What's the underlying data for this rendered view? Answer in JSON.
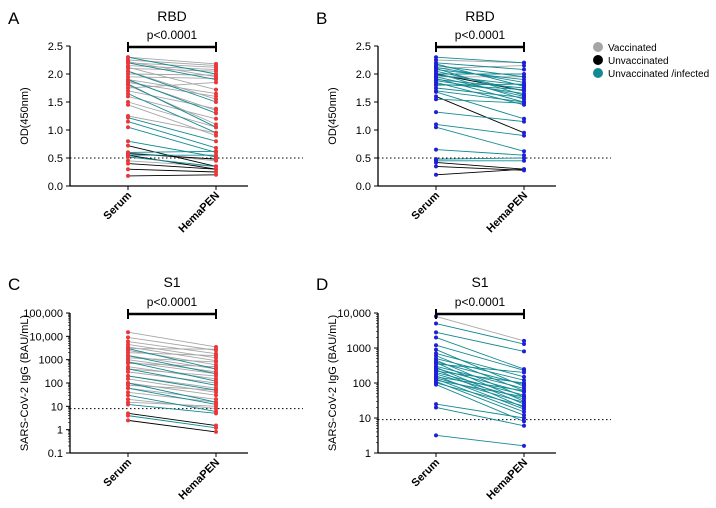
{
  "legend": [
    {
      "label": "Vaccinated",
      "color": "#a6a6a6"
    },
    {
      "label": "Unvaccinated",
      "color": "#000000"
    },
    {
      "label": "Unvaccinated /infected",
      "color": "#138a93"
    }
  ],
  "chart_data": [
    {
      "panel": "A",
      "type": "line",
      "title": "RBD",
      "ylabel": "OD(450nm)",
      "scale": "linear",
      "categories": [
        "Serum",
        "HemaPEN"
      ],
      "point_color": "#e8383b",
      "pvalue": "p<0.0001",
      "ylim": [
        0,
        2.5
      ],
      "yticks": [
        0,
        0.5,
        1.0,
        1.5,
        2.0,
        2.5
      ],
      "ytick_labels": [
        "0.0",
        "0.5",
        "1.0",
        "1.5",
        "2.0",
        "2.5"
      ],
      "threshold": 0.5,
      "groups": [
        {
          "name": "Vaccinated",
          "pairs": [
            [
              2.3,
              2.18
            ],
            [
              2.25,
              2.15
            ],
            [
              2.22,
              1.95
            ],
            [
              2.2,
              2.12
            ],
            [
              2.15,
              2.08
            ],
            [
              2.12,
              1.72
            ],
            [
              2.1,
              2.05
            ],
            [
              2.05,
              1.55
            ],
            [
              2.0,
              1.98
            ],
            [
              1.95,
              1.92
            ],
            [
              1.9,
              1.65
            ],
            [
              1.88,
              1.35
            ],
            [
              1.85,
              1.6
            ],
            [
              1.8,
              1.1
            ],
            [
              1.75,
              1.85
            ],
            [
              1.7,
              1.38
            ],
            [
              1.6,
              1.2
            ],
            [
              1.5,
              1.05
            ],
            [
              1.45,
              0.9
            ],
            [
              1.25,
              0.95
            ],
            [
              0.6,
              0.45
            ],
            [
              0.45,
              0.35
            ]
          ]
        },
        {
          "name": "Unvaccinated",
          "pairs": [
            [
              0.72,
              0.35
            ],
            [
              0.58,
              0.48
            ],
            [
              0.55,
              0.3
            ],
            [
              0.4,
              0.3
            ],
            [
              0.3,
              0.25
            ],
            [
              0.18,
              0.2
            ]
          ]
        },
        {
          "name": "Unvaccinated /infected",
          "pairs": [
            [
              2.3,
              2.0
            ],
            [
              2.2,
              1.9
            ],
            [
              2.05,
              1.5
            ],
            [
              1.9,
              1.3
            ],
            [
              1.82,
              1.05
            ],
            [
              1.65,
              0.95
            ],
            [
              1.22,
              0.8
            ],
            [
              1.15,
              0.68
            ],
            [
              1.05,
              0.6
            ],
            [
              0.8,
              0.52
            ],
            [
              0.6,
              0.62
            ],
            [
              0.55,
              0.55
            ],
            [
              0.52,
              0.35
            ]
          ]
        }
      ]
    },
    {
      "panel": "B",
      "type": "line",
      "title": "RBD",
      "ylabel": "OD(450nm)",
      "scale": "linear",
      "categories": [
        "Serum",
        "HemaPEN"
      ],
      "point_color": "#1f1fd6",
      "pvalue": "p<0.0001",
      "ylim": [
        0,
        2.5
      ],
      "yticks": [
        0,
        0.5,
        1.0,
        1.5,
        2.0,
        2.5
      ],
      "ytick_labels": [
        "0.0",
        "0.5",
        "1.0",
        "1.5",
        "2.0",
        "2.5"
      ],
      "threshold": 0.5,
      "groups": [
        {
          "name": "Vaccinated",
          "pairs": [
            [
              2.25,
              2.2
            ],
            [
              2.1,
              2.15
            ],
            [
              1.95,
              1.95
            ]
          ]
        },
        {
          "name": "Unvaccinated",
          "pairs": [
            [
              2.0,
              1.7
            ],
            [
              1.6,
              0.95
            ],
            [
              0.42,
              0.3
            ],
            [
              0.35,
              0.28
            ],
            [
              0.2,
              0.3
            ]
          ]
        },
        {
          "name": "Unvaccinated /infected",
          "pairs": [
            [
              2.3,
              2.2
            ],
            [
              2.2,
              2.08
            ],
            [
              2.18,
              1.78
            ],
            [
              2.15,
              1.95
            ],
            [
              2.12,
              1.85
            ],
            [
              2.1,
              1.62
            ],
            [
              2.08,
              1.9
            ],
            [
              2.05,
              1.7
            ],
            [
              2.02,
              1.55
            ],
            [
              2.0,
              2.0
            ],
            [
              1.98,
              1.8
            ],
            [
              1.95,
              1.6
            ],
            [
              1.92,
              1.5
            ],
            [
              1.9,
              1.75
            ],
            [
              1.88,
              1.65
            ],
            [
              1.85,
              1.45
            ],
            [
              1.82,
              1.72
            ],
            [
              1.8,
              1.82
            ],
            [
              1.75,
              1.58
            ],
            [
              1.7,
              1.5
            ],
            [
              1.68,
              1.2
            ],
            [
              1.55,
              1.48
            ],
            [
              1.32,
              1.15
            ],
            [
              1.1,
              0.9
            ],
            [
              1.05,
              0.62
            ],
            [
              0.65,
              0.55
            ],
            [
              0.48,
              0.5
            ],
            [
              0.45,
              0.45
            ]
          ]
        }
      ]
    },
    {
      "panel": "C",
      "type": "line",
      "title": "S1",
      "ylabel": "SARS-CoV-2 IgG (BAU/mL)",
      "scale": "log",
      "categories": [
        "Serum",
        "HemaPEN"
      ],
      "point_color": "#e8383b",
      "pvalue": "p<0.0001",
      "ylim": [
        0.1,
        100000
      ],
      "yticks": [
        0.1,
        1,
        10,
        100,
        1000,
        10000,
        100000
      ],
      "ytick_labels": [
        "0.1",
        "1",
        "10",
        "100",
        "1000",
        "10,000",
        "100,000"
      ],
      "threshold": 8,
      "groups": [
        {
          "name": "Vaccinated",
          "pairs": [
            [
              15000,
              3500
            ],
            [
              9000,
              2500
            ],
            [
              6000,
              1800
            ],
            [
              4500,
              1200
            ],
            [
              3500,
              900
            ],
            [
              3000,
              2800
            ],
            [
              2500,
              600
            ],
            [
              2000,
              1500
            ],
            [
              1500,
              400
            ],
            [
              1200,
              800
            ],
            [
              1000,
              300
            ],
            [
              800,
              250
            ],
            [
              700,
              500
            ],
            [
              500,
              150
            ],
            [
              400,
              200
            ],
            [
              300,
              100
            ],
            [
              200,
              60
            ],
            [
              150,
              40
            ],
            [
              100,
              30
            ],
            [
              80,
              50
            ],
            [
              60,
              20
            ],
            [
              40,
              15
            ],
            [
              20,
              8
            ],
            [
              15,
              10
            ]
          ]
        },
        {
          "name": "Unvaccinated",
          "pairs": [
            [
              2.5,
              0.8
            ],
            [
              5,
              1.5
            ]
          ]
        },
        {
          "name": "Unvaccinated /infected",
          "pairs": [
            [
              3000,
              400
            ],
            [
              1500,
              250
            ],
            [
              800,
              120
            ],
            [
              400,
              80
            ],
            [
              200,
              50
            ],
            [
              100,
              15
            ],
            [
              60,
              12
            ],
            [
              30,
              6
            ],
            [
              12,
              5
            ],
            [
              4,
              1.2
            ]
          ]
        }
      ]
    },
    {
      "panel": "D",
      "type": "line",
      "title": "S1",
      "ylabel": "SARS-CoV-2 IgG (BAU/mL)",
      "scale": "log",
      "categories": [
        "Serum",
        "HemaPEN"
      ],
      "point_color": "#1f1fd6",
      "pvalue": "p<0.0001",
      "ylim": [
        1,
        10000
      ],
      "yticks": [
        1,
        10,
        100,
        1000,
        10000
      ],
      "ytick_labels": [
        "1",
        "10",
        "100",
        "1000",
        "10,000"
      ],
      "threshold": 9,
      "groups": [
        {
          "name": "Vaccinated",
          "pairs": [
            [
              8000,
              1600
            ]
          ]
        },
        {
          "name": "Unvaccinated",
          "pairs": []
        },
        {
          "name": "Unvaccinated /infected",
          "pairs": [
            [
              5000,
              1300
            ],
            [
              2800,
              800
            ],
            [
              2000,
              250
            ],
            [
              1200,
              230
            ],
            [
              900,
              80
            ],
            [
              700,
              150
            ],
            [
              600,
              60
            ],
            [
              500,
              120
            ],
            [
              450,
              40
            ],
            [
              400,
              90
            ],
            [
              380,
              30
            ],
            [
              350,
              200
            ],
            [
              300,
              70
            ],
            [
              280,
              25
            ],
            [
              260,
              55
            ],
            [
              240,
              20
            ],
            [
              220,
              100
            ],
            [
              200,
              45
            ],
            [
              180,
              35
            ],
            [
              160,
              18
            ],
            [
              150,
              60
            ],
            [
              140,
              28
            ],
            [
              130,
              15
            ],
            [
              120,
              40
            ],
            [
              110,
              12
            ],
            [
              100,
              22
            ],
            [
              90,
              8
            ],
            [
              25,
              10
            ],
            [
              20,
              6
            ],
            [
              3.2,
              1.6
            ]
          ]
        }
      ]
    }
  ]
}
